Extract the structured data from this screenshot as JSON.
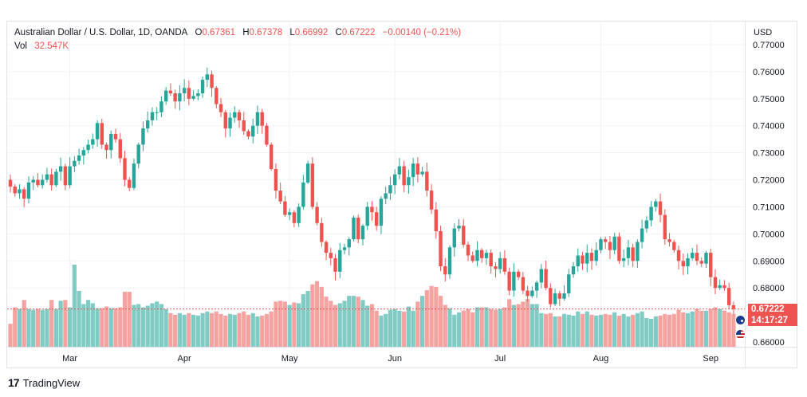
{
  "legend": {
    "symbol": "Australian Dollar / U.S. Dollar, 1D, OANDA",
    "open_label": "O",
    "open_value": "0.67361",
    "high_label": "H",
    "high_value": "0.67378",
    "low_label": "L",
    "low_value": "0.66992",
    "close_label": "C",
    "close_value": "0.67222",
    "change": "−0.00140 (−0.21%)",
    "vol_label": "Vol",
    "vol_value": "32.547K"
  },
  "currency": "USD",
  "last_price": {
    "price": "0.67222",
    "countdown": "14:17:27"
  },
  "brand": {
    "name": "TradingView"
  },
  "colors": {
    "up": "#26a69a",
    "down": "#ef5350",
    "vol_up": "#80cbc4",
    "vol_down": "#f5a3a1"
  },
  "chart_data": {
    "type": "candlestick",
    "instrument": "Australian Dollar / U.S. Dollar",
    "interval": "1D",
    "source": "OANDA",
    "ylim": [
      0.66,
      0.77
    ],
    "y_ticks": [
      "0.77000",
      "0.76000",
      "0.75000",
      "0.74000",
      "0.73000",
      "0.72000",
      "0.71000",
      "0.70000",
      "0.69000",
      "0.68000",
      "0.66000"
    ],
    "x_ticks": [
      {
        "label": "Mar",
        "index": 13
      },
      {
        "label": "Apr",
        "index": 38
      },
      {
        "label": "May",
        "index": 61
      },
      {
        "label": "Jun",
        "index": 84
      },
      {
        "label": "Jul",
        "index": 107
      },
      {
        "label": "Aug",
        "index": 129
      },
      {
        "label": "Sep",
        "index": 153
      }
    ],
    "last_price": 0.67222,
    "closes": [
      0.7175,
      0.715,
      0.7165,
      0.713,
      0.719,
      0.72,
      0.718,
      0.72,
      0.722,
      0.718,
      0.723,
      0.725,
      0.718,
      0.725,
      0.727,
      0.729,
      0.731,
      0.733,
      0.735,
      0.741,
      0.733,
      0.731,
      0.737,
      0.735,
      0.728,
      0.72,
      0.717,
      0.726,
      0.733,
      0.739,
      0.742,
      0.745,
      0.745,
      0.749,
      0.753,
      0.752,
      0.749,
      0.752,
      0.754,
      0.75,
      0.751,
      0.752,
      0.757,
      0.759,
      0.754,
      0.748,
      0.745,
      0.739,
      0.743,
      0.745,
      0.742,
      0.738,
      0.736,
      0.74,
      0.745,
      0.74,
      0.733,
      0.724,
      0.716,
      0.712,
      0.707,
      0.708,
      0.704,
      0.71,
      0.719,
      0.726,
      0.71,
      0.704,
      0.697,
      0.693,
      0.691,
      0.686,
      0.694,
      0.695,
      0.698,
      0.706,
      0.698,
      0.703,
      0.71,
      0.708,
      0.703,
      0.713,
      0.715,
      0.718,
      0.722,
      0.725,
      0.718,
      0.721,
      0.726,
      0.722,
      0.723,
      0.716,
      0.709,
      0.701,
      0.688,
      0.685,
      0.695,
      0.702,
      0.703,
      0.696,
      0.692,
      0.69,
      0.694,
      0.691,
      0.693,
      0.688,
      0.687,
      0.691,
      0.686,
      0.679,
      0.686,
      0.684,
      0.679,
      0.677,
      0.679,
      0.682,
      0.687,
      0.68,
      0.674,
      0.678,
      0.676,
      0.678,
      0.685,
      0.688,
      0.692,
      0.689,
      0.693,
      0.69,
      0.694,
      0.698,
      0.697,
      0.694,
      0.699,
      0.69,
      0.691,
      0.695,
      0.69,
      0.697,
      0.702,
      0.705,
      0.71,
      0.712,
      0.707,
      0.698,
      0.697,
      0.694,
      0.69,
      0.688,
      0.691,
      0.693,
      0.69,
      0.689,
      0.693,
      0.684,
      0.68,
      0.681,
      0.68,
      0.6736,
      0.67222
    ],
    "volume_level": [
      0.28,
      0.48,
      0.46,
      0.57,
      0.46,
      0.45,
      0.46,
      0.45,
      0.46,
      0.57,
      0.46,
      0.56,
      0.57,
      0.48,
      1.0,
      0.68,
      0.52,
      0.57,
      0.53,
      0.47,
      0.47,
      0.49,
      0.47,
      0.47,
      0.48,
      0.67,
      0.67,
      0.51,
      0.52,
      0.48,
      0.5,
      0.53,
      0.55,
      0.52,
      0.46,
      0.41,
      0.39,
      0.41,
      0.39,
      0.41,
      0.39,
      0.38,
      0.41,
      0.43,
      0.41,
      0.43,
      0.4,
      0.38,
      0.4,
      0.39,
      0.41,
      0.43,
      0.39,
      0.41,
      0.37,
      0.38,
      0.4,
      0.43,
      0.55,
      0.56,
      0.55,
      0.51,
      0.54,
      0.53,
      0.64,
      0.68,
      0.76,
      0.8,
      0.73,
      0.61,
      0.56,
      0.51,
      0.53,
      0.56,
      0.62,
      0.62,
      0.61,
      0.57,
      0.5,
      0.52,
      0.44,
      0.38,
      0.4,
      0.45,
      0.46,
      0.44,
      0.43,
      0.49,
      0.44,
      0.55,
      0.62,
      0.69,
      0.74,
      0.73,
      0.62,
      0.51,
      0.47,
      0.39,
      0.42,
      0.44,
      0.46,
      0.42,
      0.48,
      0.48,
      0.48,
      0.46,
      0.45,
      0.46,
      0.48,
      0.58,
      0.51,
      0.52,
      0.55,
      0.58,
      0.52,
      0.52,
      0.41,
      0.4,
      0.41,
      0.37,
      0.37,
      0.4,
      0.39,
      0.38,
      0.43,
      0.4,
      0.43,
      0.39,
      0.38,
      0.39,
      0.4,
      0.39,
      0.42,
      0.38,
      0.4,
      0.37,
      0.39,
      0.41,
      0.43,
      0.35,
      0.34,
      0.37,
      0.38,
      0.4,
      0.39,
      0.4,
      0.45,
      0.42,
      0.41,
      0.43,
      0.46,
      0.44,
      0.44,
      0.46,
      0.48,
      0.46,
      0.44,
      0.42,
      0.4
    ]
  }
}
